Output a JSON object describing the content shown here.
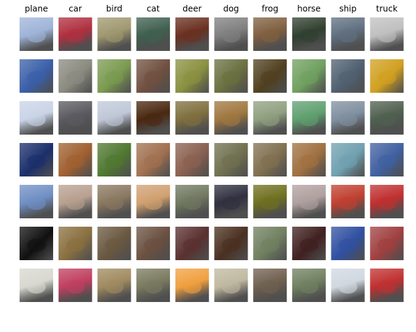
{
  "columns": [
    "plane",
    "car",
    "bird",
    "cat",
    "deer",
    "dog",
    "frog",
    "horse",
    "ship",
    "truck"
  ]
}
